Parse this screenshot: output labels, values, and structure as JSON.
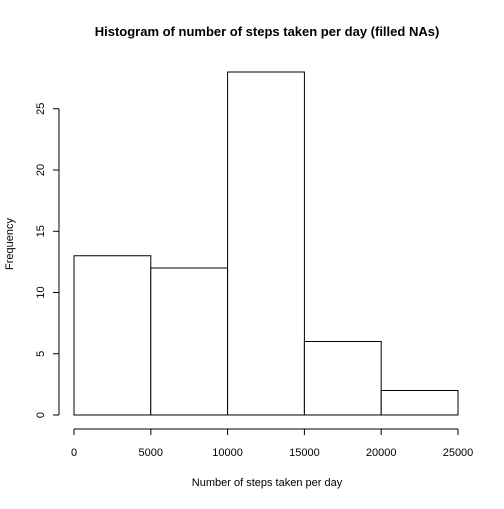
{
  "chart_data": {
    "type": "bar",
    "title": "Histogram of number of steps taken per day (filled NAs)",
    "xlabel": "Number of steps taken per day",
    "ylabel": "Frequency",
    "bins": [
      {
        "from": 0,
        "to": 5000,
        "value": 13
      },
      {
        "from": 5000,
        "to": 10000,
        "value": 12
      },
      {
        "from": 10000,
        "to": 15000,
        "value": 28
      },
      {
        "from": 15000,
        "to": 20000,
        "value": 6
      },
      {
        "from": 20000,
        "to": 25000,
        "value": 2
      }
    ],
    "x_ticks": [
      0,
      5000,
      10000,
      15000,
      20000,
      25000
    ],
    "y_ticks": [
      0,
      5,
      10,
      15,
      20,
      25
    ],
    "xlim": [
      0,
      25000
    ],
    "ylim": [
      0,
      28
    ],
    "grid": false,
    "legend": "none",
    "colors": {
      "bar_fill": "#ffffff",
      "bar_stroke": "#000000"
    }
  }
}
